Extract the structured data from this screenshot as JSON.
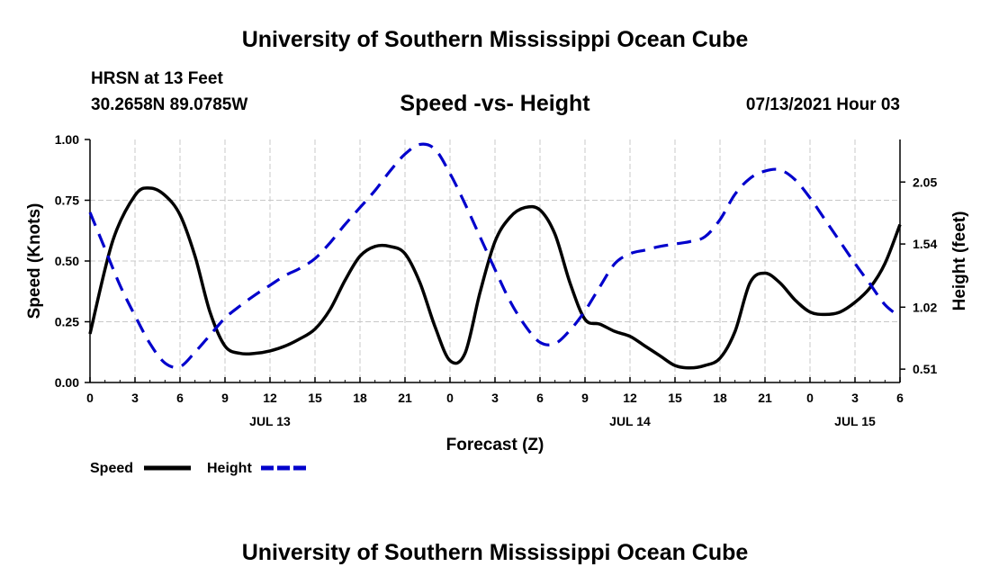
{
  "header": {
    "title": "University of Southern Mississippi Ocean Cube",
    "station": "HRSN at 13 Feet",
    "coordinates": "30.2658N  89.0785W",
    "chart_title": "Speed -vs- Height",
    "datetime": "07/13/2021 Hour 03"
  },
  "footer": {
    "title": "University of Southern Mississippi Ocean Cube"
  },
  "chart_data": {
    "type": "line",
    "title": "Speed -vs- Height",
    "xlabel": "Forecast (Z)",
    "ylabel": "Speed (Knots)",
    "y2label": "Height (feet)",
    "x_range_hours": [
      0,
      54
    ],
    "ylim": [
      0,
      1.0
    ],
    "y2lim": [
      0.4,
      2.4
    ],
    "grid": true,
    "x_ticks": [
      {
        "hour": 0,
        "label": "0"
      },
      {
        "hour": 3,
        "label": "3"
      },
      {
        "hour": 6,
        "label": "6"
      },
      {
        "hour": 9,
        "label": "9"
      },
      {
        "hour": 12,
        "label": "12"
      },
      {
        "hour": 15,
        "label": "15"
      },
      {
        "hour": 18,
        "label": "18"
      },
      {
        "hour": 21,
        "label": "21"
      },
      {
        "hour": 24,
        "label": "0"
      },
      {
        "hour": 27,
        "label": "3"
      },
      {
        "hour": 30,
        "label": "6"
      },
      {
        "hour": 33,
        "label": "9"
      },
      {
        "hour": 36,
        "label": "12"
      },
      {
        "hour": 39,
        "label": "15"
      },
      {
        "hour": 42,
        "label": "18"
      },
      {
        "hour": 45,
        "label": "21"
      },
      {
        "hour": 48,
        "label": "0"
      },
      {
        "hour": 51,
        "label": "3"
      },
      {
        "hour": 54,
        "label": "6"
      }
    ],
    "date_labels": [
      {
        "hour": 12,
        "label": "JUL 13"
      },
      {
        "hour": 36,
        "label": "JUL 14"
      },
      {
        "hour": 51,
        "label": "JUL 15"
      }
    ],
    "y_ticks": [
      {
        "value": 0.0,
        "label": "0.00"
      },
      {
        "value": 0.25,
        "label": "0.25"
      },
      {
        "value": 0.5,
        "label": "0.50"
      },
      {
        "value": 0.75,
        "label": "0.75"
      },
      {
        "value": 1.0,
        "label": "1.00"
      }
    ],
    "y2_ticks": [
      {
        "value": 0.51,
        "label": "0.51"
      },
      {
        "value": 1.02,
        "label": "1.02"
      },
      {
        "value": 1.54,
        "label": "1.54"
      },
      {
        "value": 2.05,
        "label": "2.05"
      }
    ],
    "series": [
      {
        "name": "Speed",
        "axis": "left",
        "color": "#000000",
        "dash": "solid",
        "x": [
          0,
          1.5,
          3,
          4,
          5,
          6,
          7,
          8,
          9,
          10,
          11,
          12,
          13,
          14,
          15,
          16,
          17,
          18,
          19,
          20,
          21,
          22,
          23,
          24,
          25,
          26,
          27,
          28,
          29,
          30,
          31,
          32,
          33,
          34,
          35,
          36,
          37,
          38,
          39,
          40,
          41,
          42,
          43,
          44,
          45,
          46,
          47,
          48,
          49,
          50,
          51,
          52,
          53,
          54
        ],
        "values": [
          0.2,
          0.58,
          0.77,
          0.8,
          0.77,
          0.69,
          0.52,
          0.29,
          0.15,
          0.12,
          0.12,
          0.13,
          0.15,
          0.18,
          0.22,
          0.3,
          0.42,
          0.52,
          0.56,
          0.56,
          0.53,
          0.41,
          0.23,
          0.09,
          0.12,
          0.37,
          0.58,
          0.68,
          0.72,
          0.71,
          0.61,
          0.41,
          0.26,
          0.24,
          0.21,
          0.19,
          0.15,
          0.11,
          0.07,
          0.06,
          0.07,
          0.1,
          0.21,
          0.41,
          0.45,
          0.41,
          0.34,
          0.29,
          0.28,
          0.29,
          0.33,
          0.39,
          0.49,
          0.65
        ]
      },
      {
        "name": "Height",
        "axis": "right",
        "color": "#0000cc",
        "dash": "dashed",
        "x": [
          0,
          1,
          2,
          3,
          4,
          5,
          6,
          7,
          8,
          9,
          10,
          11,
          12,
          13,
          14,
          15,
          16,
          17,
          18,
          19,
          20,
          21,
          22,
          23,
          24,
          25,
          26,
          27,
          28,
          29,
          30,
          31,
          32,
          33,
          34,
          35,
          36,
          37,
          38,
          39,
          40,
          41,
          42,
          43,
          44,
          45,
          46,
          47,
          48,
          49,
          50,
          51,
          52,
          53,
          54
        ],
        "values": [
          1.8,
          1.5,
          1.2,
          0.95,
          0.72,
          0.56,
          0.53,
          0.65,
          0.79,
          0.93,
          1.03,
          1.12,
          1.2,
          1.28,
          1.34,
          1.42,
          1.55,
          1.7,
          1.84,
          1.98,
          2.14,
          2.28,
          2.36,
          2.32,
          2.12,
          1.87,
          1.6,
          1.33,
          1.07,
          0.87,
          0.73,
          0.72,
          0.83,
          0.99,
          1.19,
          1.38,
          1.46,
          1.49,
          1.52,
          1.54,
          1.56,
          1.6,
          1.74,
          1.95,
          2.08,
          2.14,
          2.15,
          2.07,
          1.92,
          1.74,
          1.56,
          1.38,
          1.21,
          1.04,
          0.94
        ]
      }
    ]
  },
  "legend": {
    "items": [
      {
        "label": "Speed",
        "color": "#000000",
        "dash": "solid"
      },
      {
        "label": "Height",
        "color": "#0000cc",
        "dash": "dashed"
      }
    ]
  }
}
